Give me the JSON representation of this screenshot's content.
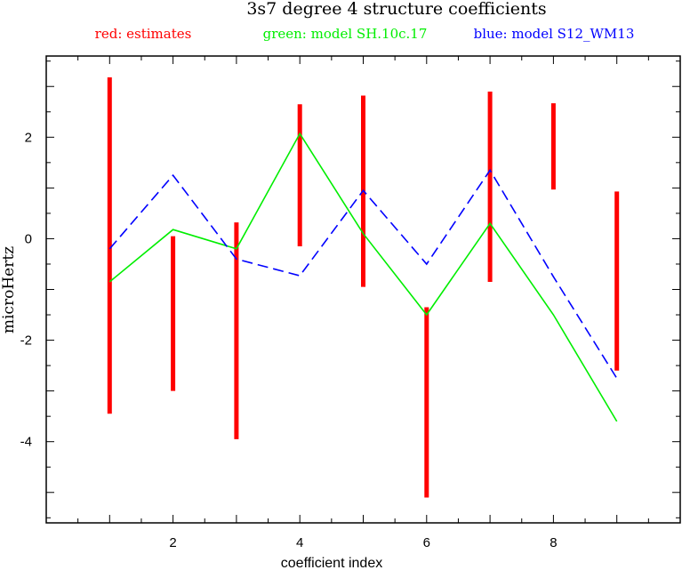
{
  "chart_data": {
    "type": "line",
    "title": "3s7 degree 4 structure coefficients",
    "xlabel": "coefficient index",
    "ylabel": "microHertz",
    "xlim": [
      0,
      10
    ],
    "ylim": [
      -5.6,
      3.6
    ],
    "x_ticks": [
      2,
      4,
      6,
      8
    ],
    "y_ticks": [
      -4,
      -2,
      0,
      2
    ],
    "x_minor_step": 0.5,
    "y_minor_step": 0.5,
    "legend": [
      {
        "text": "red: estimates",
        "color": "#ff0000"
      },
      {
        "text": "green: model SH.10c.17",
        "color": "#00ee00"
      },
      {
        "text": "blue: model S12_WM13",
        "color": "#0000ff"
      }
    ],
    "estimates": {
      "color": "#ff0000",
      "x": [
        1,
        2,
        3,
        4,
        5,
        6,
        7,
        8,
        9
      ],
      "low": [
        -3.45,
        -3.0,
        -3.95,
        -0.15,
        -0.95,
        -5.1,
        -0.85,
        0.97,
        -2.6
      ],
      "high": [
        3.18,
        0.05,
        0.32,
        2.65,
        2.82,
        -1.35,
        2.9,
        2.67,
        0.93
      ]
    },
    "series": [
      {
        "name": "model SH.10c.17",
        "color": "#00ee00",
        "style": "solid",
        "x": [
          1,
          2,
          3,
          4,
          5,
          6,
          7,
          8,
          9
        ],
        "y": [
          -0.85,
          0.18,
          -0.2,
          2.07,
          0.1,
          -1.5,
          0.3,
          -1.5,
          -3.6
        ]
      },
      {
        "name": "model S12_WM13",
        "color": "#0000ff",
        "style": "dashed",
        "x": [
          1,
          2,
          3,
          4,
          5,
          6,
          7,
          8,
          9
        ],
        "y": [
          -0.2,
          1.25,
          -0.4,
          -0.73,
          0.95,
          -0.5,
          1.35,
          -0.75,
          -2.75
        ]
      }
    ]
  }
}
